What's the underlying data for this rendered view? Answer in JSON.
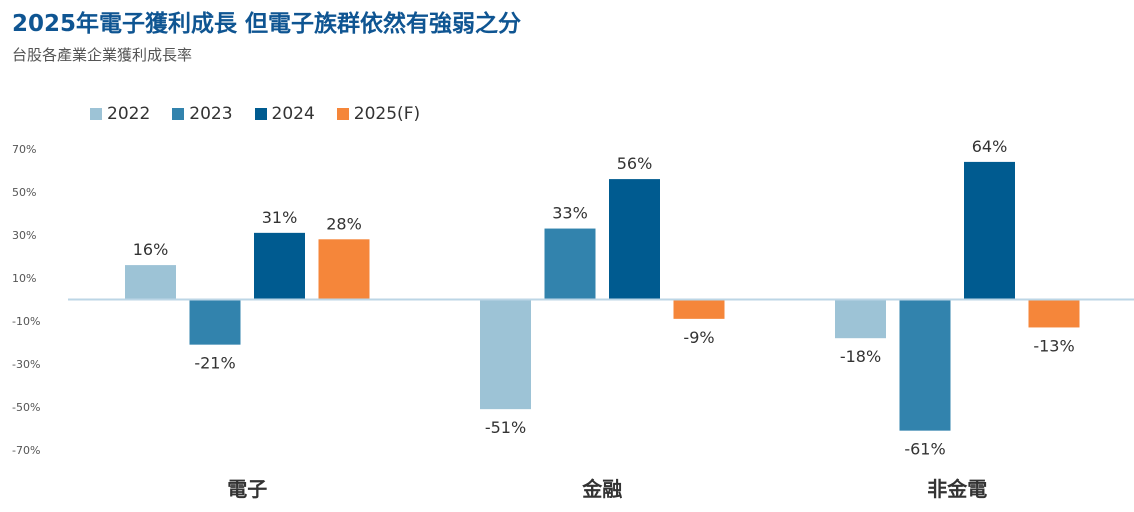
{
  "header": {
    "title": "2025年電子獲利成長 但電子族群依然有強弱之分",
    "subtitle": "台股各產業企業獲利成長率"
  },
  "chart_data": {
    "type": "bar",
    "title": "2025年電子獲利成長 但電子族群依然有強弱之分",
    "subtitle": "台股各產業企業獲利成長率",
    "categories": [
      "電子",
      "金融",
      "非金電"
    ],
    "series": [
      {
        "name": "2022",
        "values": [
          16,
          -51,
          -18
        ],
        "labels": [
          "16%",
          "-51%",
          "-18%"
        ],
        "color": "#9dc3d6"
      },
      {
        "name": "2023",
        "values": [
          -21,
          33,
          -61
        ],
        "labels": [
          "-21%",
          "33%",
          "-61%"
        ],
        "color": "#3283ad"
      },
      {
        "name": "2024",
        "values": [
          31,
          56,
          64
        ],
        "labels": [
          "31%",
          "56%",
          "64%"
        ],
        "color": "#005b90"
      },
      {
        "name": "2025(F)",
        "values": [
          28,
          -9,
          -13
        ],
        "labels": [
          "28%",
          "-9%",
          "-13%"
        ],
        "color": "#f5863a"
      }
    ],
    "ylim": [
      -70,
      70
    ],
    "yticks": [
      70,
      50,
      30,
      10,
      -10,
      -30,
      -50,
      -70
    ],
    "ytick_labels": [
      "70%",
      "50%",
      "30%",
      "10%",
      "-10%",
      "-30%",
      "-50%",
      "-70%"
    ],
    "legend_position": "top-left",
    "grid": false,
    "axis_color": "#bcd6e6"
  }
}
